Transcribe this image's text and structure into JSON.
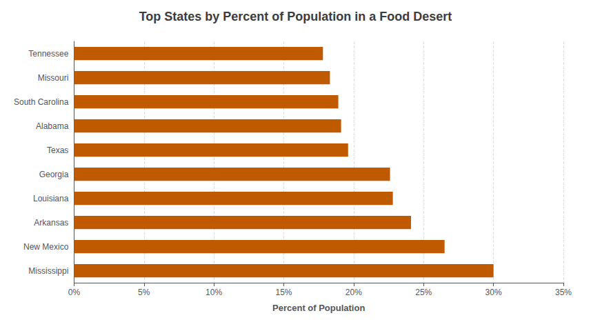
{
  "chart_data": {
    "type": "bar",
    "orientation": "horizontal",
    "title": "Top States by Percent of Population in a Food Desert",
    "xlabel": "Percent of Population",
    "categories": [
      "Mississippi",
      "New Mexico",
      "Arkansas",
      "Louisiana",
      "Georgia",
      "Texas",
      "Alabama",
      "South Carolina",
      "Missouri",
      "Tennessee"
    ],
    "values": [
      0.3,
      0.265,
      0.241,
      0.228,
      0.226,
      0.196,
      0.191,
      0.189,
      0.183,
      0.178
    ],
    "color": "#C05A00",
    "xlim": [
      0,
      0.35
    ],
    "xticks": [
      {
        "value": 0,
        "label": "0%"
      },
      {
        "value": 0.05,
        "label": "5%"
      },
      {
        "value": 0.1,
        "label": "10%"
      },
      {
        "value": 0.15,
        "label": "15%"
      },
      {
        "value": 0.2,
        "label": "20%"
      },
      {
        "value": 0.25,
        "label": "25%"
      },
      {
        "value": 0.3,
        "label": "30%"
      },
      {
        "value": 0.35,
        "label": "35%"
      }
    ],
    "grid": true
  }
}
